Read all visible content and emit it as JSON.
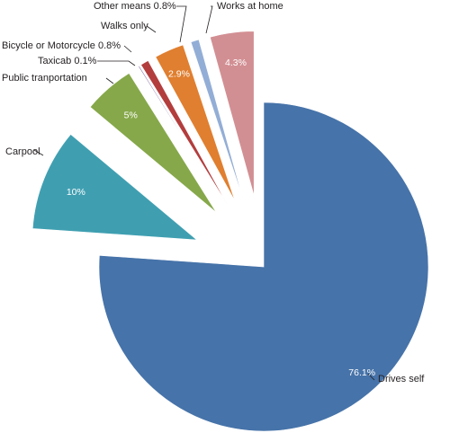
{
  "chart_data": {
    "type": "pie",
    "title": "",
    "exploded": true,
    "slices": [
      {
        "label": "Drives self",
        "value": 76.1,
        "pct_label": "76.1%",
        "color": "#4673a9"
      },
      {
        "label": "Carpool",
        "value": 10,
        "pct_label": "10%",
        "color": "#3f9fb1"
      },
      {
        "label": "Public tranportation",
        "value": 5,
        "pct_label": "5%",
        "color": "#86a84a"
      },
      {
        "label": "Taxicab",
        "value": 0.1,
        "value_label": "0.1%",
        "color": "#7a5a9a"
      },
      {
        "label": "Bicycle or Motorcycle",
        "value": 0.8,
        "value_label": "0.8%",
        "color": "#b33d3d"
      },
      {
        "label": "Walks only",
        "value": 2.9,
        "pct_label": "2.9%",
        "color": "#e07f30"
      },
      {
        "label": "Other means",
        "value": 0.8,
        "value_label": "0.8%",
        "color": "#93aed6"
      },
      {
        "label": "Works at home",
        "value": 4.3,
        "pct_label": "4.3%",
        "color": "#d28f93"
      }
    ]
  }
}
